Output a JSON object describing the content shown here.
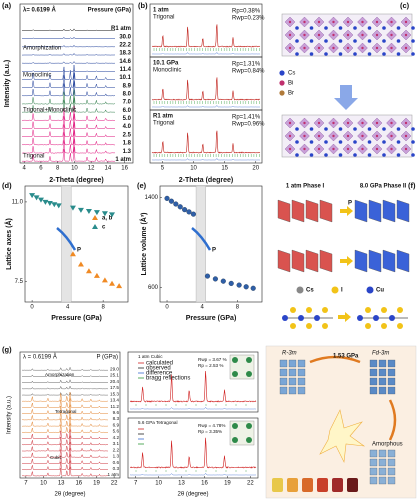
{
  "a": {
    "label": "(a)",
    "wavelength": "λ= 0.6199 Å",
    "legend_title": "Pressure (GPa)",
    "pressures": [
      "R1 atm",
      "30.0",
      "22.2",
      "18.3",
      "14.6",
      "11.4",
      "10.1",
      "8.9",
      "8.0",
      "7.0",
      "6.0",
      "5.0",
      "4.0",
      "2.5",
      "1.8",
      "1.3",
      "1 atm"
    ],
    "phases": [
      "Amorphization",
      "Monoclinic",
      "Trigonal+Monoclinic",
      "Trigonal"
    ],
    "xlabel": "2-Theta (degree)",
    "ylabel": "Intensity (a.u.)",
    "xlim": [
      3.5,
      17
    ],
    "xticks": [
      4,
      6,
      8,
      10,
      12,
      14,
      16
    ]
  },
  "b": {
    "label": "(b)",
    "xlabel": "2-Theta (degree)",
    "xlim": [
      3,
      21
    ],
    "xticks": [
      5,
      10,
      15,
      20
    ],
    "panels": [
      {
        "pressure": "1 atm",
        "phase": "Trigonal",
        "rp": "Rp=0.38%",
        "rwp": "Rwp=0.23%"
      },
      {
        "pressure": "10.1 GPa",
        "phase": "Monoclinic",
        "rp": "Rp=1.31%",
        "rwp": "Rwp=0.84%"
      },
      {
        "pressure": "R1 atm",
        "phase": "Trigonal",
        "rp": "Rp=1.41%",
        "rwp": "Rwp=0.96%"
      }
    ]
  },
  "c": {
    "label": "(c)",
    "legend": [
      "Cs",
      "Bi",
      "Br"
    ]
  },
  "d": {
    "label": "(d)",
    "xlabel": "Pressure (GPa)",
    "ylabel": "Lattice axes (Å)",
    "arrow": "P",
    "xlim": [
      -0.8,
      10.8
    ],
    "xticks": [
      0,
      4,
      8
    ],
    "ylim": [
      6.6,
      11.7
    ],
    "yticks": [
      7.5,
      {
        "value": 11,
        "label": "11.0"
      }
    ],
    "shaded_range": [
      3.3,
      4.4
    ],
    "series": [
      {
        "name": "a, b",
        "color": "#f08a24",
        "x": [
          4.6,
          5.5,
          6.4,
          7.3,
          8.2,
          9.0,
          9.8
        ],
        "values": [
          8.7,
          8.25,
          7.95,
          7.75,
          7.55,
          7.4,
          7.3
        ]
      },
      {
        "name": "c",
        "color": "#2a8c8c",
        "x": [
          0,
          0.5,
          1.0,
          1.5,
          2.0,
          2.5,
          3.0,
          4.6,
          5.5,
          6.4,
          7.3,
          8.2,
          9.0
        ],
        "values": [
          11.3,
          11.2,
          11.1,
          11.0,
          10.95,
          10.9,
          10.85,
          10.75,
          10.65,
          10.6,
          10.55,
          10.5,
          10.45
        ]
      }
    ]
  },
  "e": {
    "label": "(e)",
    "xlabel": "Pressure (GPa)",
    "ylabel": "Lattice volume (Å³)",
    "arrow": "P",
    "xlim": [
      -0.8,
      10.8
    ],
    "xticks": [
      0,
      4,
      8
    ],
    "ylim": [
      470,
      1500
    ],
    "yticks": [
      600,
      1400
    ],
    "shaded_range": [
      3.3,
      4.4
    ],
    "color": "#2f5fa8",
    "x": [
      0,
      0.5,
      1.0,
      1.5,
      2.0,
      2.5,
      3.0,
      4.6,
      5.5,
      6.4,
      7.3,
      8.2,
      9.0,
      9.8
    ],
    "values": [
      1390,
      1365,
      1340,
      1315,
      1290,
      1270,
      1250,
      700,
      675,
      655,
      635,
      620,
      605,
      592
    ]
  },
  "f": {
    "label": "(f)",
    "phase1": "1 atm Phase I",
    "phase2": "8.0 GPa Phase II",
    "arrow": "P",
    "legend": [
      "Cs",
      "I",
      "Cu"
    ]
  },
  "g": {
    "label": "(g)",
    "wavelength": "λ = 0.6199 Å",
    "legend_title": "P (GPa)",
    "pressures": [
      "29.0",
      "25.1",
      "20.4",
      "17.5",
      "15.3",
      "13.4",
      "11.2",
      "9.6",
      "8.3",
      "6.9",
      "5.6",
      "4.2",
      "3.1",
      "2.2",
      "1.3",
      "0.6",
      "0.3",
      "1 atm"
    ],
    "phases": [
      "Amorphization",
      "Tetragonal",
      "Cubic"
    ],
    "xlabel": "2θ (degree)",
    "ylabel": "Intensity (a.u.)",
    "xlim": [
      6,
      23
    ],
    "xticks": [
      7,
      10,
      13,
      16,
      19,
      22
    ],
    "fits": [
      {
        "title": "1 atm   Cubic",
        "rwp": "Rwp = 3.67 %",
        "rp": "Rp = 2.53 %"
      },
      {
        "title": "5.6 GPa  Tetragonal",
        "rwp": "Rwp = 4.78%",
        "rp": "Rp = 3.35%"
      }
    ],
    "fit_legend": [
      "calculated",
      "observed",
      "difference",
      "bragg reflections"
    ]
  },
  "h": {
    "label": "(h)",
    "phases": [
      "R-3m",
      "Fd-3m",
      "Amorphous"
    ],
    "pressure": "1.53 GPa"
  }
}
